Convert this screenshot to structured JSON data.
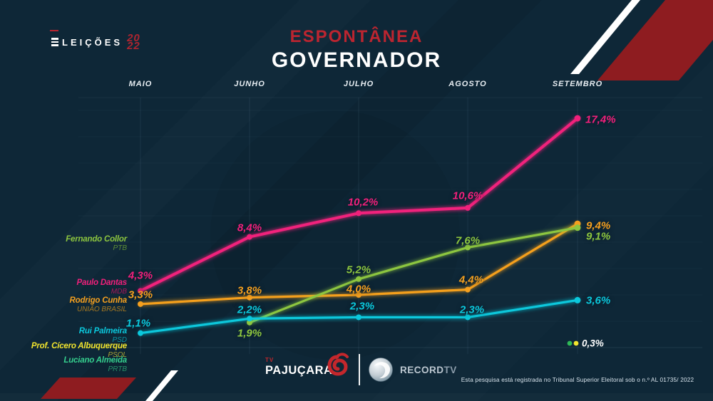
{
  "brand": {
    "name": "ELEIÇÕES",
    "year_top": "20",
    "year_bottom": "22"
  },
  "title": {
    "kicker": "ESPONTÂNEA",
    "main": "GOVERNADOR"
  },
  "chart_data": {
    "type": "line",
    "title": "ESPONTÂNEA GOVERNADOR",
    "categories": [
      "MAIO",
      "JUNHO",
      "JULHO",
      "AGOSTO",
      "SETEMBRO"
    ],
    "unit": "%",
    "ylim": [
      0,
      19
    ],
    "grid": true,
    "legend_position": "left",
    "series": [
      {
        "name": "Paulo Dantas",
        "party": "MDB",
        "color": "#f1207b",
        "values": [
          4.3,
          8.4,
          10.2,
          10.6,
          17.4
        ],
        "labels": [
          "4,3%",
          "8,4%",
          "10,2%",
          "10,6%",
          "17,4%"
        ]
      },
      {
        "name": "Rodrigo Cunha",
        "party": "UNIÃO BRASIL",
        "color": "#f5a01f",
        "values": [
          3.3,
          3.8,
          4.0,
          4.4,
          9.4
        ],
        "labels": [
          "3,3%",
          "3,8%",
          "4,0%",
          "4,4%",
          "9,4%"
        ]
      },
      {
        "name": "Fernando Collor",
        "party": "PTB",
        "color": "#8dc63f",
        "values": [
          null,
          1.9,
          5.2,
          7.6,
          9.1
        ],
        "labels": [
          null,
          "1,9%",
          "5,2%",
          "7,6%",
          "9,1%"
        ]
      },
      {
        "name": "Rui Palmeira",
        "party": "PSD",
        "color": "#0bc8dc",
        "values": [
          1.1,
          2.2,
          2.3,
          2.3,
          3.6
        ],
        "labels": [
          "1,1%",
          "2,2%",
          "2,3%",
          "2,3%",
          "3,6%"
        ]
      },
      {
        "name": "Prof. Cícero Albuquerque",
        "party": "PSOL",
        "color": "#f2e52e",
        "values": [
          null,
          null,
          null,
          null,
          0.3
        ],
        "labels": [
          null,
          null,
          null,
          null,
          null
        ]
      },
      {
        "name": "Luciano Almeida",
        "party": "PRTB",
        "color": "#2eb857",
        "values": [
          null,
          null,
          null,
          null,
          0.3
        ],
        "labels": [
          null,
          null,
          null,
          null,
          null
        ]
      }
    ],
    "shared_endpoint_label": {
      "text": "0,3%",
      "dot_colors": [
        "#2eb857",
        "#f2e52e"
      ],
      "applies_to": [
        "Luciano Almeida",
        "Prof. Cícero Albuquerque"
      ]
    }
  },
  "legend": [
    {
      "name": "Fernando Collor",
      "party": "PTB",
      "color": "#8dc63f",
      "party_color": "#5e8f37"
    },
    {
      "name": "Paulo Dantas",
      "party": "MDB",
      "color": "#f1207b",
      "party_color": "#a8175a"
    },
    {
      "name": "Rodrigo Cunha",
      "party": "UNIÃO BRASIL",
      "color": "#f5a01f",
      "party_color": "#a97a22"
    },
    {
      "name": "Rui Palmeira",
      "party": "PSD",
      "color": "#0bc8dc",
      "party_color": "#0b94a4"
    },
    {
      "name": "Prof. Cícero Albuquerque",
      "party": "PSOL",
      "color": "#f2e52e",
      "party_color": "#a9a435"
    },
    {
      "name": "Luciano Almeida",
      "party": "PRTB",
      "color": "#35cf8e",
      "party_color": "#27936a"
    }
  ],
  "footer": {
    "pajucara_tv": "TV",
    "pajucara": "PAJUÇARA",
    "record": "RECORD",
    "record_tv": "TV",
    "disclaimer": "Esta pesquisa está registrada no Tribunal Superior Eleitoral sob o n.º AL 01735/ 2022"
  }
}
